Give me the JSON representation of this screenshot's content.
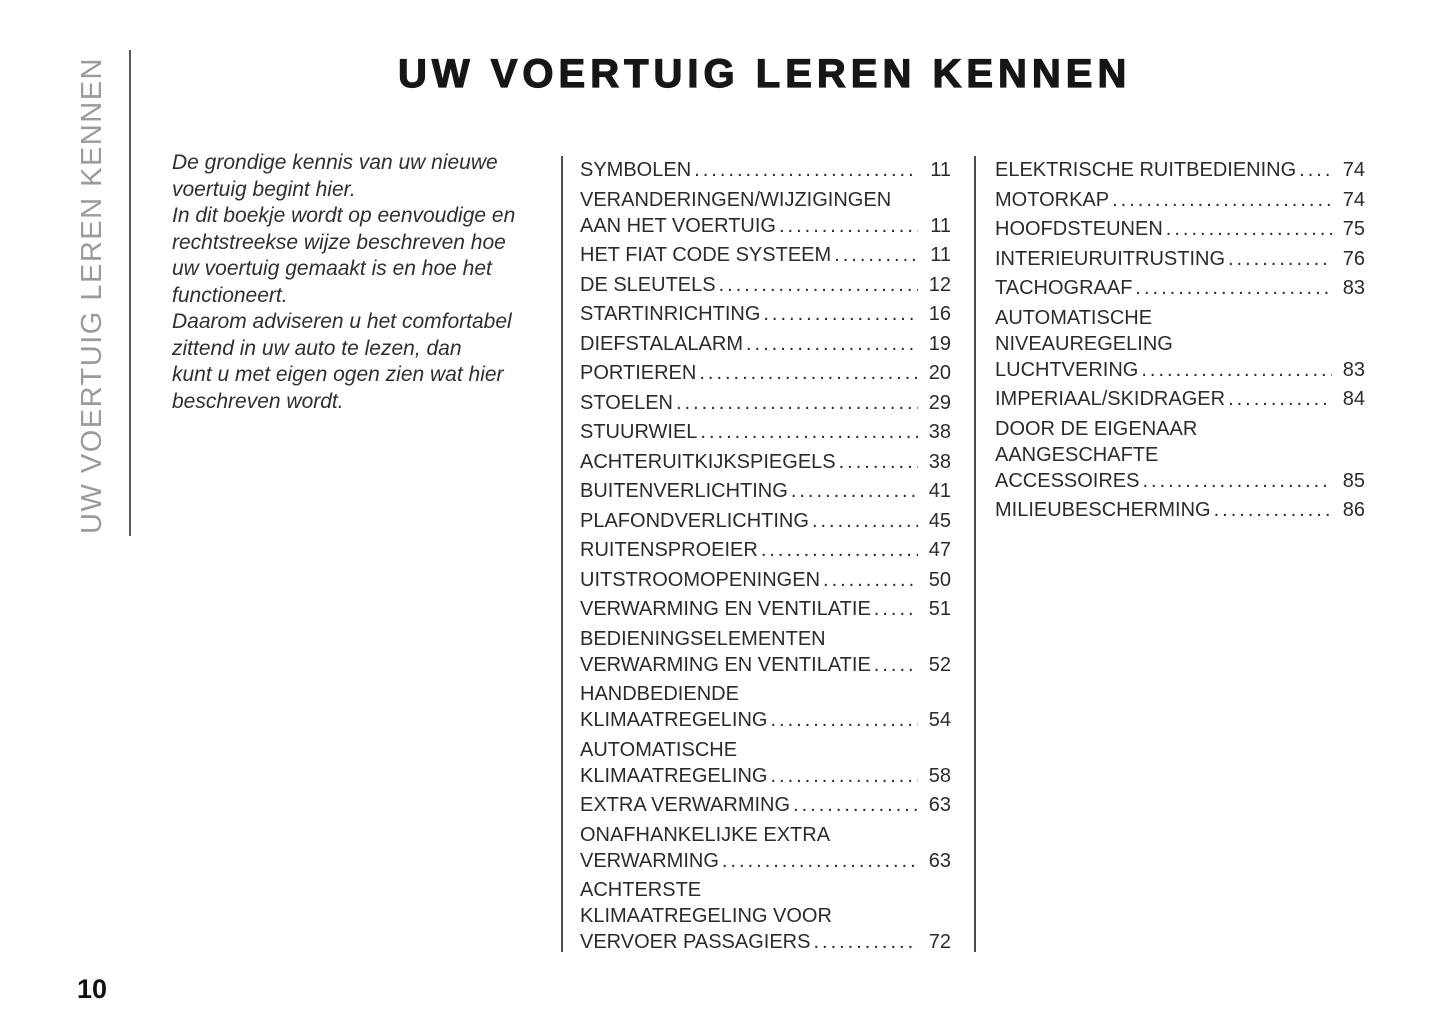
{
  "header": {
    "title": "UW VOERTUIG LEREN KENNEN"
  },
  "sidebar": {
    "label": "UW VOERTUIG LEREN KENNEN"
  },
  "intro": {
    "text": "De grondige kennis van uw nieuwe\nvoertuig begint hier.\nIn dit boekje wordt op eenvoudige en\nrechtstreekse wijze beschreven hoe\nuw voertuig gemaakt is en hoe het\nfunctioneert.\nDaarom adviseren u het comfortabel\nzittend in uw auto te lezen, dan\nkunt u met eigen ogen zien wat hier\nbeschreven wordt."
  },
  "toc": {
    "columns": [
      {
        "entries": [
          {
            "lines": [
              "SYMBOLEN"
            ],
            "page": "11"
          },
          {
            "lines": [
              "VERANDERINGEN/WIJZIGINGEN",
              "AAN HET VOERTUIG"
            ],
            "page": "11"
          },
          {
            "lines": [
              "HET FIAT CODE SYSTEEM"
            ],
            "page": "11"
          },
          {
            "lines": [
              "DE SLEUTELS"
            ],
            "page": "12"
          },
          {
            "lines": [
              "STARTINRICHTING"
            ],
            "page": "16"
          },
          {
            "lines": [
              "DIEFSTALALARM"
            ],
            "page": "19"
          },
          {
            "lines": [
              "PORTIEREN"
            ],
            "page": "20"
          },
          {
            "lines": [
              "STOELEN"
            ],
            "page": "29"
          },
          {
            "lines": [
              "STUURWIEL"
            ],
            "page": "38"
          },
          {
            "lines": [
              "ACHTERUITKIJKSPIEGELS"
            ],
            "page": "38"
          },
          {
            "lines": [
              "BUITENVERLICHTING"
            ],
            "page": "41"
          },
          {
            "lines": [
              "PLAFONDVERLICHTING"
            ],
            "page": "45"
          },
          {
            "lines": [
              "RUITENSPROEIER"
            ],
            "page": "47"
          },
          {
            "lines": [
              "UITSTROOMOPENINGEN"
            ],
            "page": "50"
          },
          {
            "lines": [
              "VERWARMING EN VENTILATIE"
            ],
            "page": "51"
          },
          {
            "lines": [
              "BEDIENINGSELEMENTEN",
              "VERWARMING EN VENTILATIE"
            ],
            "page": "52"
          },
          {
            "lines": [
              "HANDBEDIENDE",
              "KLIMAATREGELING"
            ],
            "page": "54"
          },
          {
            "lines": [
              "AUTOMATISCHE",
              "KLIMAATREGELING"
            ],
            "page": "58"
          },
          {
            "lines": [
              "EXTRA VERWARMING"
            ],
            "page": "63"
          },
          {
            "lines": [
              "ONAFHANKELIJKE EXTRA",
              "VERWARMING"
            ],
            "page": "63"
          },
          {
            "lines": [
              "ACHTERSTE",
              "KLIMAATREGELING VOOR",
              "VERVOER PASSAGIERS"
            ],
            "page": "72"
          }
        ]
      },
      {
        "entries": [
          {
            "lines": [
              "ELEKTRISCHE RUITBEDIENING"
            ],
            "page": "74"
          },
          {
            "lines": [
              "MOTORKAP"
            ],
            "page": "74"
          },
          {
            "lines": [
              "HOOFDSTEUNEN"
            ],
            "page": "75"
          },
          {
            "lines": [
              "INTERIEURUITRUSTING"
            ],
            "page": "76"
          },
          {
            "lines": [
              "TACHOGRAAF"
            ],
            "page": "83"
          },
          {
            "lines": [
              "AUTOMATISCHE",
              "NIVEAUREGELING",
              "LUCHTVERING"
            ],
            "page": "83"
          },
          {
            "lines": [
              "IMPERIAAL/SKIDRAGER"
            ],
            "page": "84"
          },
          {
            "lines": [
              "DOOR DE EIGENAAR",
              "AANGESCHAFTE",
              "ACCESSOIRES"
            ],
            "page": "85"
          },
          {
            "lines": [
              "MILIEUBESCHERMING"
            ],
            "page": "86"
          }
        ]
      }
    ]
  },
  "footer": {
    "page_number": "10"
  },
  "colors": {
    "text_dark": "#2b2b2b",
    "title_black": "#161616",
    "sidebar_gray": "#9b9b9b",
    "divider": "#4c4c4c"
  }
}
